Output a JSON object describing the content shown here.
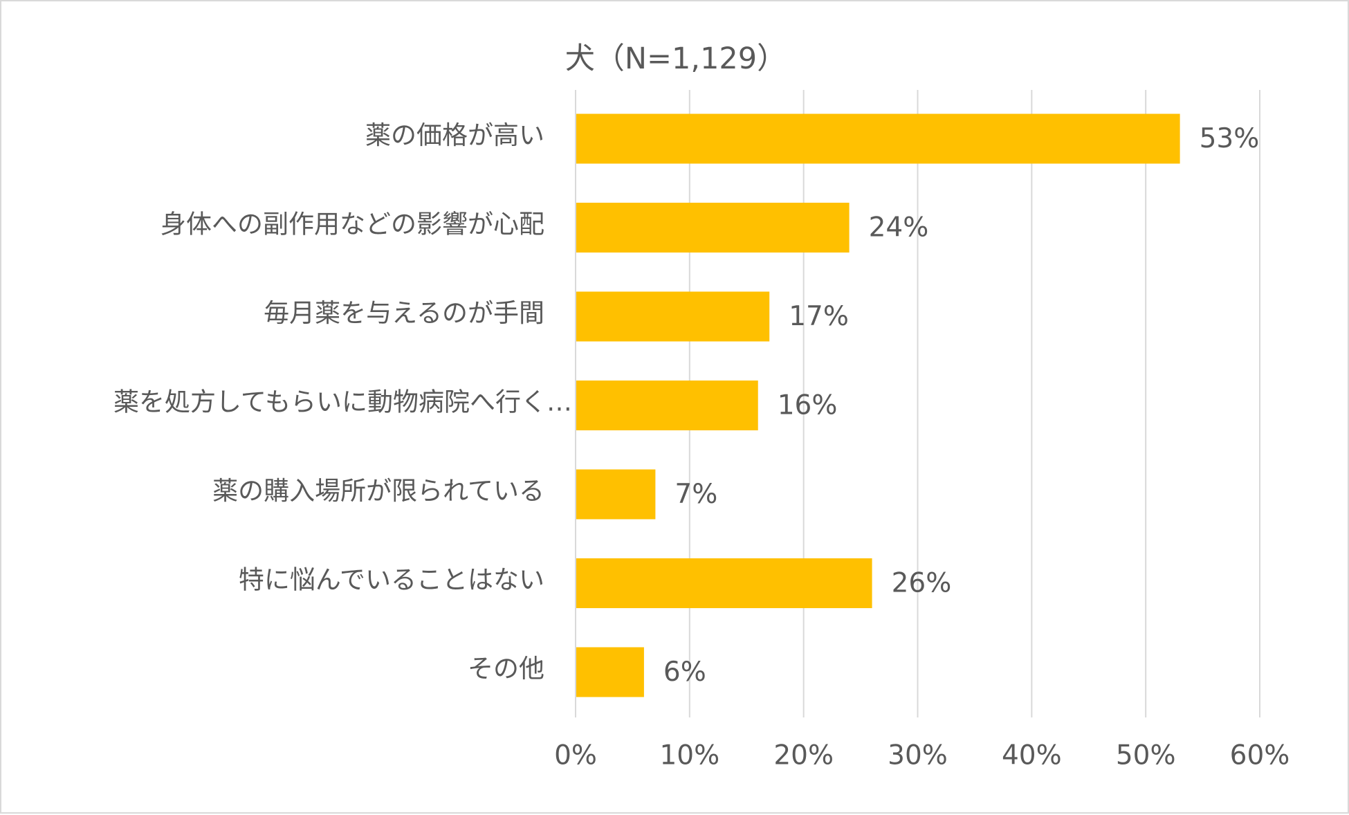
{
  "chart_data": {
    "type": "bar",
    "orientation": "horizontal",
    "title": "犬（N=1,129）",
    "categories": [
      "薬の価格が高い",
      "身体への副作用などの影響が心配",
      "毎月薬を与えるのが手間",
      "薬を処方してもらいに動物病院へ行く…",
      "薬の購入場所が限られている",
      "特に悩んでいることはない",
      "その他"
    ],
    "values": [
      53,
      24,
      17,
      16,
      7,
      26,
      6
    ],
    "value_labels": [
      "53%",
      "24%",
      "17%",
      "16%",
      "7%",
      "26%",
      "6%"
    ],
    "xlim": [
      0,
      60
    ],
    "x_ticks": [
      0,
      10,
      20,
      30,
      40,
      50,
      60
    ],
    "x_tick_labels": [
      "0%",
      "10%",
      "20%",
      "30%",
      "40%",
      "50%",
      "60%"
    ],
    "grid": "vertical",
    "legend": "none",
    "colors": {
      "bar": "#FFC000",
      "grid": "#d9d9d9",
      "text": "#595959"
    }
  }
}
